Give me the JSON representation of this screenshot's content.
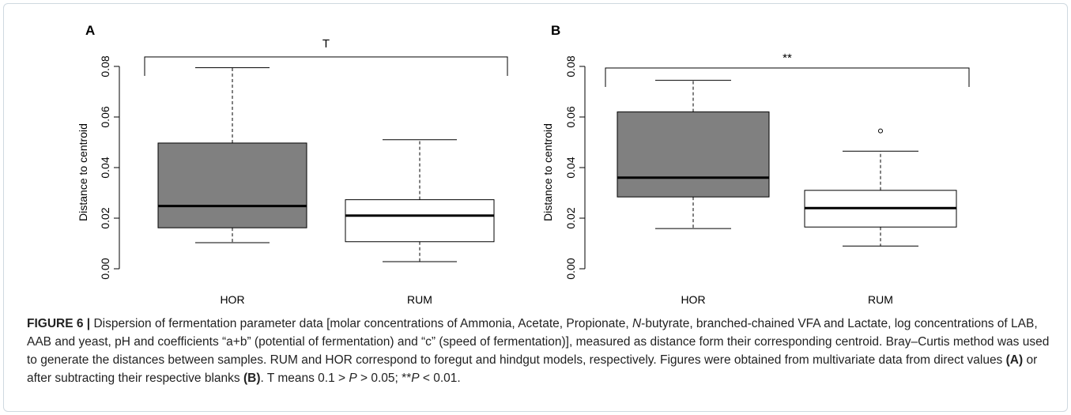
{
  "chart_data": [
    {
      "type": "box",
      "panel_label": "A",
      "categories": [
        "HOR",
        "RUM"
      ],
      "ylabel": "Distance to centroid",
      "ylim": [
        0,
        0.085
      ],
      "yticks": [
        "0.00",
        "0.02",
        "0.04",
        "0.06",
        "0.08"
      ],
      "boxes": [
        {
          "category": "HOR",
          "whisker_low": 0.0103,
          "q1": 0.0162,
          "median": 0.0248,
          "q3": 0.0497,
          "whisker_high": 0.0795,
          "outliers": [],
          "fill": "#808080"
        },
        {
          "category": "RUM",
          "whisker_low": 0.0028,
          "q1": 0.0107,
          "median": 0.021,
          "q3": 0.0273,
          "whisker_high": 0.051,
          "outliers": [],
          "fill": "#ffffff"
        }
      ],
      "significance": "T"
    },
    {
      "type": "box",
      "panel_label": "B",
      "categories": [
        "HOR",
        "RUM"
      ],
      "ylabel": "Distance to centroid",
      "ylim": [
        0,
        0.085
      ],
      "yticks": [
        "0.00",
        "0.02",
        "0.04",
        "0.06",
        "0.08"
      ],
      "boxes": [
        {
          "category": "HOR",
          "whisker_low": 0.0159,
          "q1": 0.0284,
          "median": 0.036,
          "q3": 0.062,
          "whisker_high": 0.0745,
          "outliers": [],
          "fill": "#808080"
        },
        {
          "category": "RUM",
          "whisker_low": 0.009,
          "q1": 0.0165,
          "median": 0.024,
          "q3": 0.031,
          "whisker_high": 0.0465,
          "outliers": [
            0.0545
          ],
          "fill": "#ffffff"
        }
      ],
      "significance": "**"
    }
  ],
  "caption": {
    "label": "FIGURE 6 |",
    "t1": " Dispersion of fermentation parameter data [molar concentrations of Ammonia, Acetate, Propionate, ",
    "i1": "N",
    "t2": "-butyrate, branched-chained VFA and Lactate, log concentrations of LAB, AAB and yeast, pH and coefficients “a+b” (potential of fermentation) and “c” (speed of fermentation)], measured as distance form their corresponding centroid. Bray–Curtis method was used to generate the distances between samples. RUM and HOR correspond to foregut and hindgut models, respectively. Figures were obtained from multivariate data from direct values ",
    "b1": "(A)",
    "t3": " or after subtracting their respective blanks ",
    "b2": "(B)",
    "t4": ". T means 0.1 > ",
    "i2": "P",
    "t5": " > 0.05; **",
    "i3": "P",
    "t6": " < 0.01."
  }
}
